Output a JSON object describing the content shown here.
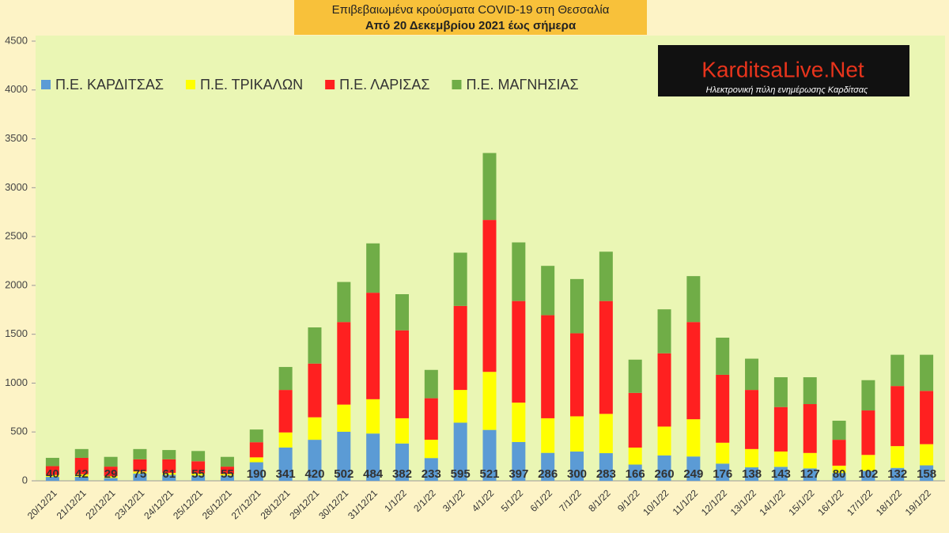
{
  "chart_data": {
    "type": "stacked_bar",
    "title": "Επιβεβαιωμένα κρούσματα COVID-19 στη Θεσσαλία",
    "subtitle": "Από 20 Δεκεμβρίου 2021 έως σήμερα",
    "categories": [
      "20/12/21",
      "21/12/21",
      "22/12/21",
      "23/12/21",
      "24/12/21",
      "25/12/21",
      "26/12/21",
      "27/12/21",
      "28/12/21",
      "29/12/21",
      "30/12/21",
      "31/12/21",
      "1/1/22",
      "2/1/22",
      "3/1/22",
      "4/1/22",
      "5/1/22",
      "6/1/22",
      "7/1/22",
      "8/1/22",
      "9/1/22",
      "10/1/22",
      "11/1/22",
      "12/1/22",
      "13/1/22",
      "14/1/22",
      "15/1/22",
      "16/1/22",
      "17/1/22",
      "18/1/22",
      "19/1/22"
    ],
    "series": [
      {
        "name": "Π.Ε. ΚΑΡΔΙΤΣΑΣ",
        "color": "#5b9bd5",
        "data_labels": true,
        "values": [
          40,
          42,
          29,
          75,
          61,
          55,
          55,
          190,
          341,
          420,
          502,
          484,
          382,
          233,
          595,
          521,
          397,
          286,
          300,
          283,
          166,
          260,
          249,
          176,
          138,
          143,
          127,
          80,
          102,
          132,
          158
        ]
      },
      {
        "name": "Π.Ε. ΤΡΙΚΑΛΩΝ",
        "color": "#ffff00",
        "values": [
          20,
          25,
          20,
          20,
          20,
          20,
          15,
          50,
          154,
          230,
          278,
          351,
          258,
          187,
          335,
          594,
          403,
          354,
          360,
          402,
          174,
          295,
          381,
          214,
          187,
          157,
          158,
          75,
          163,
          223,
          217
        ]
      },
      {
        "name": "Π.Ε. ΛΑΡΙΣΑΣ",
        "color": "#ff2020",
        "values": [
          90,
          168,
          96,
          125,
          139,
          125,
          75,
          155,
          435,
          550,
          845,
          1090,
          900,
          425,
          860,
          1555,
          1040,
          1055,
          850,
          1155,
          560,
          750,
          995,
          695,
          605,
          455,
          500,
          265,
          455,
          615,
          545
        ]
      },
      {
        "name": "Π.Ε. ΜΑΓΝΗΣΙΑΣ",
        "color": "#70ad47",
        "values": [
          85,
          90,
          100,
          105,
          95,
          105,
          100,
          130,
          235,
          370,
          410,
          505,
          370,
          290,
          545,
          685,
          600,
          505,
          555,
          505,
          340,
          450,
          470,
          380,
          320,
          305,
          275,
          195,
          310,
          320,
          370
        ]
      }
    ],
    "ylim": [
      0,
      4500
    ],
    "yticks": [
      0,
      500,
      1000,
      1500,
      2000,
      2500,
      3000,
      3500,
      4000,
      4500
    ],
    "grid": false
  },
  "logo": {
    "name": "KarditsaLive.Net",
    "tagline": "Ηλεκτρονική πύλη ενημέρωσης Καρδίτσας"
  }
}
